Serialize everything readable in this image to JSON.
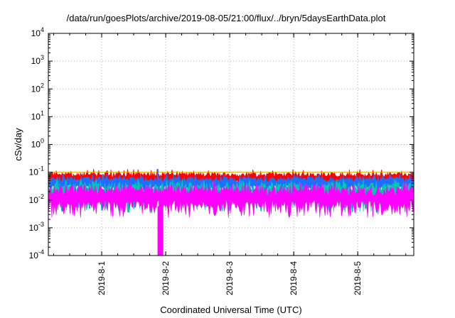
{
  "chart_data": {
    "type": "area",
    "title": "/data/run/goesPlots/archive/2019-08-05/21:00/flux/../bryn/5daysEarthData.plot",
    "xlabel": "Coordinated Universal Time (UTC)",
    "ylabel": "cSv/day",
    "yscale": "log",
    "ylim": [
      0.0001,
      10000
    ],
    "xlim": [
      "2019-07-31T04:00",
      "2019-08-05T21:00"
    ],
    "grid": true,
    "y_ticks": [
      {
        "base": "10",
        "exp": "-4"
      },
      {
        "base": "10",
        "exp": "-3"
      },
      {
        "base": "10",
        "exp": "-2"
      },
      {
        "base": "10",
        "exp": "-1"
      },
      {
        "base": "10",
        "exp": "0"
      },
      {
        "base": "10",
        "exp": "1"
      },
      {
        "base": "10",
        "exp": "2"
      },
      {
        "base": "10",
        "exp": "3"
      },
      {
        "base": "10",
        "exp": "4"
      }
    ],
    "x_ticks": [
      "2019-8-1",
      "2019-8-2",
      "2019-8-3",
      "2019-8-4",
      "2019-8-5"
    ],
    "x_tick_dates": [
      "2019-08-01T00:00",
      "2019-08-02T00:00",
      "2019-08-03T00:00",
      "2019-08-04T00:00",
      "2019-08-05T00:00"
    ],
    "series": [
      {
        "color": "#ff0000",
        "low": 0.04,
        "high": 0.1
      },
      {
        "color": "#1f6fff",
        "low": 0.025,
        "high": 0.07
      },
      {
        "color": "#00c8b0",
        "low": 0.008,
        "high": 0.045
      },
      {
        "color": "#ff00ff",
        "low": 0.005,
        "high": 0.035
      }
    ],
    "reference_line": {
      "value": 0.1,
      "color": "#e6b000"
    },
    "dropout": {
      "time": "2019-08-01T22:00",
      "low": 0.0001
    },
    "spike": {
      "time": "2019-08-01T21:00",
      "value": 0.13
    }
  }
}
